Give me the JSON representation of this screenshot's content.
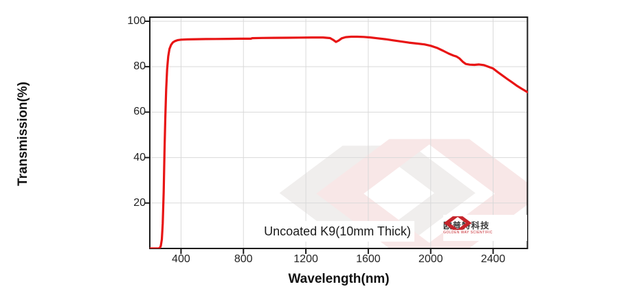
{
  "annotation": "Uncoated K9(10mm Thick)",
  "logo": {
    "name_cn": "欧普特科技",
    "name_en": "GOLDEN WAY SCIENTIFIC"
  },
  "colors": {
    "curve_red": "#e81414",
    "grid_gray": "#d9d9d9",
    "frame_black": "#1a1a1a",
    "logo_red": "#c5242b",
    "watermark_pink": "#f8e7e7",
    "watermark_gray": "#f0eeed"
  },
  "chart_data": {
    "type": "line",
    "title": "",
    "xlabel": "Wavelength(nm)",
    "ylabel": "Transmission(%)",
    "xlim": [
      200,
      2620
    ],
    "ylim": [
      0,
      101.8
    ],
    "x_ticks": [
      400,
      800,
      1200,
      1600,
      2000,
      2400
    ],
    "y_ticks": [
      20,
      40,
      60,
      80,
      100
    ],
    "grid": true,
    "legend": false,
    "annotation": "Uncoated K9(10mm Thick)",
    "series": [
      {
        "name": "Uncoated K9 (10mm Thick)",
        "points": [
          [
            200,
            0
          ],
          [
            255,
            0
          ],
          [
            263,
            0.2
          ],
          [
            270,
            1
          ],
          [
            277,
            4
          ],
          [
            283,
            11
          ],
          [
            289,
            25
          ],
          [
            294,
            42
          ],
          [
            299,
            57
          ],
          [
            305,
            70
          ],
          [
            311,
            79
          ],
          [
            318,
            84.5
          ],
          [
            326,
            87.8
          ],
          [
            336,
            89.6
          ],
          [
            348,
            90.7
          ],
          [
            362,
            91.3
          ],
          [
            380,
            91.7
          ],
          [
            400,
            91.9
          ],
          [
            440,
            92
          ],
          [
            500,
            92.1
          ],
          [
            560,
            92.15
          ],
          [
            620,
            92.2
          ],
          [
            700,
            92.25
          ],
          [
            780,
            92.3
          ],
          [
            848,
            92.3
          ],
          [
            856,
            92.55
          ],
          [
            920,
            92.65
          ],
          [
            1000,
            92.7
          ],
          [
            1080,
            92.75
          ],
          [
            1160,
            92.8
          ],
          [
            1240,
            92.85
          ],
          [
            1310,
            92.85
          ],
          [
            1355,
            92.6
          ],
          [
            1375,
            91.8
          ],
          [
            1393,
            90.9
          ],
          [
            1410,
            91.5
          ],
          [
            1430,
            92.5
          ],
          [
            1455,
            93
          ],
          [
            1490,
            93.2
          ],
          [
            1530,
            93.2
          ],
          [
            1570,
            93.1
          ],
          [
            1610,
            92.9
          ],
          [
            1660,
            92.5
          ],
          [
            1710,
            92.1
          ],
          [
            1760,
            91.6
          ],
          [
            1810,
            91.1
          ],
          [
            1860,
            90.6
          ],
          [
            1910,
            90.2
          ],
          [
            1960,
            89.8
          ],
          [
            2000,
            89.2
          ],
          [
            2040,
            88.3
          ],
          [
            2080,
            87
          ],
          [
            2115,
            85.8
          ],
          [
            2145,
            84.9
          ],
          [
            2165,
            84.5
          ],
          [
            2185,
            83.6
          ],
          [
            2205,
            82.2
          ],
          [
            2225,
            81.2
          ],
          [
            2250,
            80.9
          ],
          [
            2280,
            80.8
          ],
          [
            2310,
            81
          ],
          [
            2340,
            80.7
          ],
          [
            2370,
            80
          ],
          [
            2400,
            79.2
          ],
          [
            2430,
            77.6
          ],
          [
            2460,
            76.1
          ],
          [
            2490,
            74.6
          ],
          [
            2520,
            73.2
          ],
          [
            2550,
            71.7
          ],
          [
            2580,
            70.4
          ],
          [
            2620,
            68.8
          ]
        ]
      }
    ]
  }
}
